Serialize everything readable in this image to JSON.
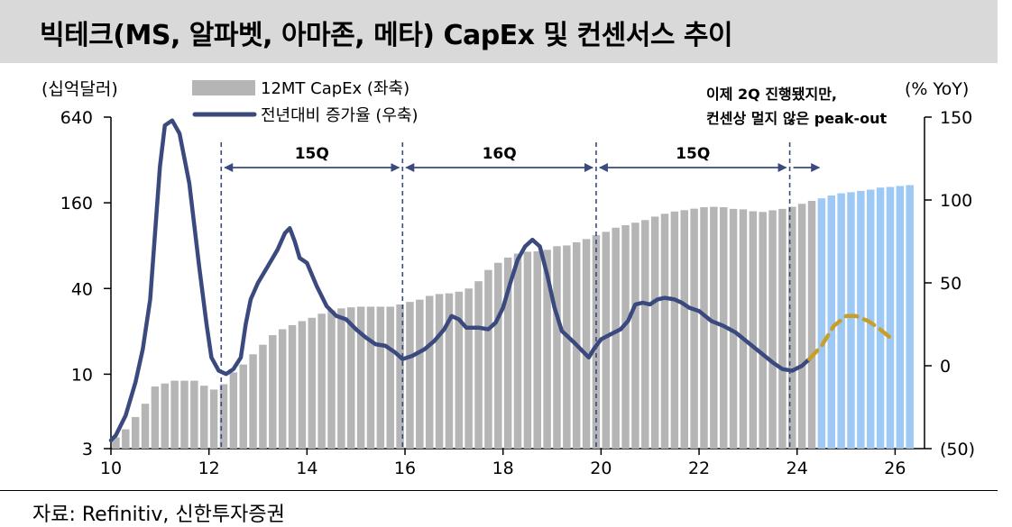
{
  "header": {
    "title": "빅테크(MS, 알파벳, 아마존, 메타) CapEx 및 컨센서스 추이"
  },
  "source": "자료: Refinitiv, 신한투자증권",
  "colors": {
    "bar_actual": "#b5b5b5",
    "bar_forecast": "#9ec9f5",
    "line_actual": "#3a4a7e",
    "line_forecast": "#c7a02b",
    "title_bg": "#d9d9d9"
  },
  "chart_data": {
    "type": "bar+line",
    "left_axis": {
      "unit_label": "(십억달러)",
      "scale": "log",
      "ticks": [
        3,
        10,
        40,
        160,
        640
      ],
      "tick_labels": [
        "3",
        "10",
        "40",
        "160",
        "640"
      ]
    },
    "right_axis": {
      "unit_label": "(% YoY)",
      "range": [
        -50,
        150
      ],
      "ticks": [
        -50,
        0,
        50,
        100,
        150
      ],
      "tick_labels": [
        "(50)",
        "0",
        "50",
        "100",
        "150"
      ]
    },
    "x_axis": {
      "range": [
        10,
        26.6
      ],
      "ticks": [
        10,
        12,
        14,
        16,
        18,
        20,
        22,
        24,
        26
      ],
      "tick_labels": [
        "10",
        "12",
        "14",
        "16",
        "18",
        "20",
        "22",
        "24",
        "26"
      ]
    },
    "legend": [
      {
        "name": "12MT CapEx (좌축)",
        "kind": "bar"
      },
      {
        "name": "전년대비 증가율 (우축)",
        "kind": "line"
      }
    ],
    "bar_series": {
      "name": "12MT CapEx (좌축)",
      "x_start": 10,
      "step": 0.2,
      "forecast_from_index": 72,
      "values": [
        3.6,
        4.1,
        5.0,
        6.2,
        8.2,
        8.6,
        9.0,
        9.0,
        9.0,
        8.3,
        7.8,
        8.5,
        10.3,
        11.7,
        13.8,
        16.1,
        18.8,
        20.7,
        22.1,
        23.6,
        24.9,
        26.6,
        28.1,
        29.0,
        29.5,
        29.8,
        29.8,
        29.8,
        29.8,
        30.9,
        32.2,
        33.4,
        35.5,
        36.6,
        37.0,
        38.0,
        40.0,
        45.0,
        54.0,
        60.6,
        66.0,
        70.3,
        72.5,
        73.0,
        74.8,
        79.3,
        80.3,
        84.5,
        89.0,
        94.8,
        100.0,
        107.0,
        111.4,
        116.0,
        121.0,
        128.0,
        134.0,
        139.0,
        142.0,
        145.5,
        149.0,
        150.0,
        149.0,
        145.0,
        144.0,
        139.5,
        138.0,
        141.7,
        145.0,
        150.0,
        157.5,
        165.0,
        172.0,
        180.0,
        186.7,
        190.0,
        194.0,
        198.0,
        204.7,
        206.8,
        210.0,
        213.0
      ]
    },
    "line_series": {
      "name": "전년대비 증가율 (우축)",
      "actual": [
        [
          10.0,
          -45
        ],
        [
          10.1,
          -42
        ],
        [
          10.3,
          -30
        ],
        [
          10.5,
          -10
        ],
        [
          10.65,
          10
        ],
        [
          10.8,
          40
        ],
        [
          10.9,
          80
        ],
        [
          11.0,
          120
        ],
        [
          11.1,
          145
        ],
        [
          11.25,
          148
        ],
        [
          11.4,
          140
        ],
        [
          11.6,
          110
        ],
        [
          11.8,
          60
        ],
        [
          11.95,
          25
        ],
        [
          12.05,
          5
        ],
        [
          12.2,
          -3
        ],
        [
          12.35,
          -5
        ],
        [
          12.5,
          -2
        ],
        [
          12.65,
          5
        ],
        [
          12.75,
          25
        ],
        [
          12.85,
          40
        ],
        [
          13.0,
          50
        ],
        [
          13.2,
          60
        ],
        [
          13.4,
          70
        ],
        [
          13.55,
          80
        ],
        [
          13.65,
          83
        ],
        [
          13.75,
          75
        ],
        [
          13.85,
          65
        ],
        [
          14.0,
          62
        ],
        [
          14.2,
          48
        ],
        [
          14.4,
          36
        ],
        [
          14.6,
          30
        ],
        [
          14.8,
          28
        ],
        [
          15.0,
          22
        ],
        [
          15.2,
          17
        ],
        [
          15.4,
          13
        ],
        [
          15.6,
          12
        ],
        [
          15.8,
          8
        ],
        [
          15.95,
          4
        ],
        [
          16.15,
          6
        ],
        [
          16.4,
          10
        ],
        [
          16.6,
          15
        ],
        [
          16.8,
          22
        ],
        [
          16.95,
          30
        ],
        [
          17.1,
          28
        ],
        [
          17.25,
          23
        ],
        [
          17.5,
          23
        ],
        [
          17.7,
          22
        ],
        [
          17.85,
          26
        ],
        [
          18.0,
          35
        ],
        [
          18.15,
          50
        ],
        [
          18.3,
          64
        ],
        [
          18.45,
          72
        ],
        [
          18.6,
          76
        ],
        [
          18.75,
          72
        ],
        [
          18.9,
          55
        ],
        [
          19.05,
          35
        ],
        [
          19.2,
          21
        ],
        [
          19.45,
          14
        ],
        [
          19.65,
          8
        ],
        [
          19.75,
          5
        ],
        [
          19.85,
          10
        ],
        [
          20.0,
          16
        ],
        [
          20.2,
          19
        ],
        [
          20.4,
          22
        ],
        [
          20.55,
          27
        ],
        [
          20.7,
          37
        ],
        [
          20.85,
          38
        ],
        [
          21.0,
          37
        ],
        [
          21.15,
          40
        ],
        [
          21.3,
          41
        ],
        [
          21.5,
          40
        ],
        [
          21.65,
          38
        ],
        [
          21.8,
          35
        ],
        [
          22.0,
          33
        ],
        [
          22.25,
          27
        ],
        [
          22.5,
          24
        ],
        [
          22.75,
          20
        ],
        [
          23.0,
          14
        ],
        [
          23.25,
          8
        ],
        [
          23.5,
          2
        ],
        [
          23.7,
          -2
        ],
        [
          23.9,
          -3
        ],
        [
          24.1,
          0
        ],
        [
          24.25,
          4
        ]
      ],
      "forecast": [
        [
          24.25,
          4
        ],
        [
          24.5,
          12
        ],
        [
          24.75,
          24
        ],
        [
          25.0,
          30
        ],
        [
          25.2,
          30
        ],
        [
          25.45,
          27
        ],
        [
          25.65,
          23
        ],
        [
          25.9,
          17
        ]
      ]
    },
    "annotations": {
      "period_labels": [
        "15Q",
        "16Q",
        "15Q"
      ],
      "period_bounds": [
        12.25,
        15.95,
        19.9,
        23.85,
        24.45
      ],
      "note_lines": [
        "이제 2Q 진행됐지만,",
        "컨센상 멀지 않은 peak-out"
      ]
    }
  }
}
